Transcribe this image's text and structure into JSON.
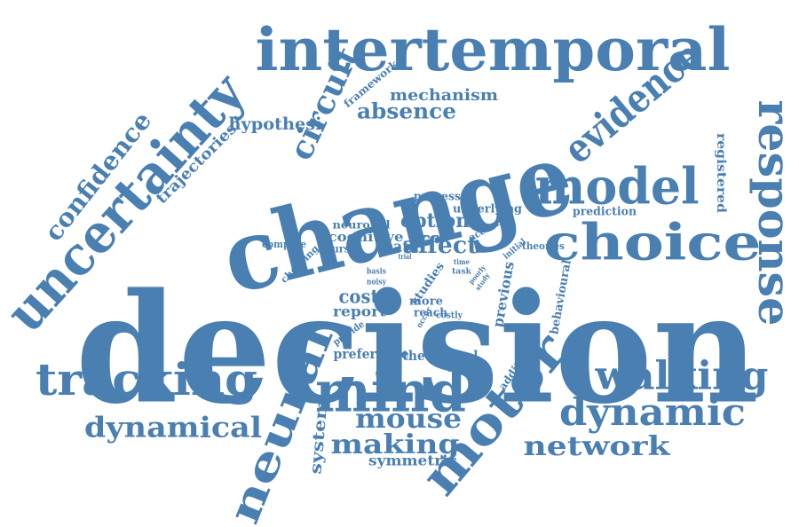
{
  "color": "#4a7fb1",
  "words": [
    "decision",
    "change",
    "intertemporal",
    "uncertainty",
    "model",
    "choice",
    "response",
    "evidence",
    "motor",
    "neural",
    "mind",
    "tracking",
    "walking",
    "dynamic",
    "dynamical",
    "network",
    "mouse",
    "making",
    "circuit",
    "confidence",
    "mechanism",
    "absence",
    "hypothesi",
    "trajectories",
    "framework",
    "option",
    "affect",
    "cognitive",
    "neuronal",
    "path",
    "compute",
    "cursor",
    "processes",
    "underlying",
    "prediction",
    "registered",
    "account",
    "initial",
    "theories",
    "choosing",
    "cost",
    "report",
    "basis",
    "noisy",
    "studies",
    "more",
    "reach",
    "costly",
    "previous",
    "behavioural",
    "trial",
    "task",
    "time",
    "poorly",
    "study",
    "occur",
    "provide",
    "preference",
    "theoretical",
    "additional",
    "system",
    "symmetric"
  ]
}
